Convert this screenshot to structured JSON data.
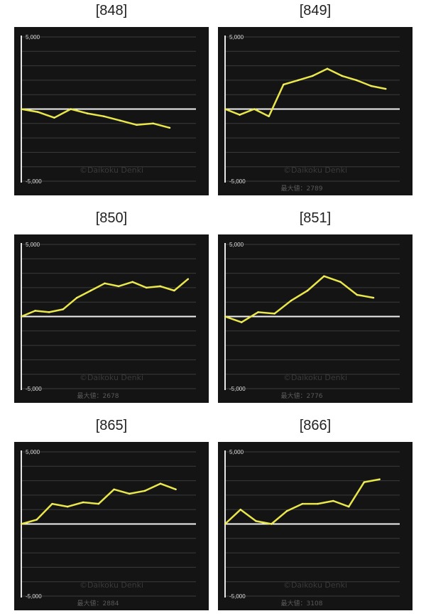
{
  "chart_data": [
    {
      "type": "line",
      "title": "[848]",
      "yticks": [
        "5,000",
        "-5,000"
      ],
      "ylim": [
        -5000,
        5000
      ],
      "watermark": "©Daikoku Denki",
      "max_label": "",
      "y": [
        0,
        -200,
        -600,
        0,
        -300,
        -500,
        -800,
        -1100,
        -1000,
        -1300
      ]
    },
    {
      "type": "line",
      "title": "[849]",
      "yticks": [
        "5,000",
        "-5,000"
      ],
      "ylim": [
        -5000,
        5000
      ],
      "watermark": "©Daikoku Denki",
      "max_label": "最大値：2789",
      "y": [
        0,
        -400,
        0,
        -500,
        1700,
        2000,
        2300,
        2800,
        2300,
        2000,
        1600,
        1400
      ]
    },
    {
      "type": "line",
      "title": "[850]",
      "yticks": [
        "5,000",
        "-5,000"
      ],
      "ylim": [
        -5000,
        5000
      ],
      "watermark": "©Daikoku Denki",
      "max_label": "最大値：2678",
      "y": [
        0,
        400,
        300,
        500,
        1300,
        1800,
        2300,
        2100,
        2400,
        2000,
        2100,
        1800,
        2600
      ]
    },
    {
      "type": "line",
      "title": "[851]",
      "yticks": [
        "5,000",
        "-5,000"
      ],
      "ylim": [
        -5000,
        5000
      ],
      "watermark": "©Daikoku Denki",
      "max_label": "最大値：2776",
      "y": [
        0,
        -400,
        300,
        200,
        1100,
        1800,
        2800,
        2400,
        1500,
        1300
      ]
    },
    {
      "type": "line",
      "title": "[865]",
      "yticks": [
        "5,000",
        "-5,000"
      ],
      "ylim": [
        -5000,
        5000
      ],
      "watermark": "©Daikoku Denki",
      "max_label": "最大値：2884",
      "y": [
        0,
        300,
        1400,
        1200,
        1500,
        1400,
        2400,
        2100,
        2300,
        2800,
        2400
      ]
    },
    {
      "type": "line",
      "title": "[866]",
      "yticks": [
        "5,000",
        "-5,000"
      ],
      "ylim": [
        -5000,
        5000
      ],
      "watermark": "©Daikoku Denki",
      "max_label": "最大値：3108",
      "y": [
        0,
        1000,
        200,
        0,
        900,
        1400,
        1400,
        1600,
        1200,
        2900,
        3100
      ]
    }
  ]
}
